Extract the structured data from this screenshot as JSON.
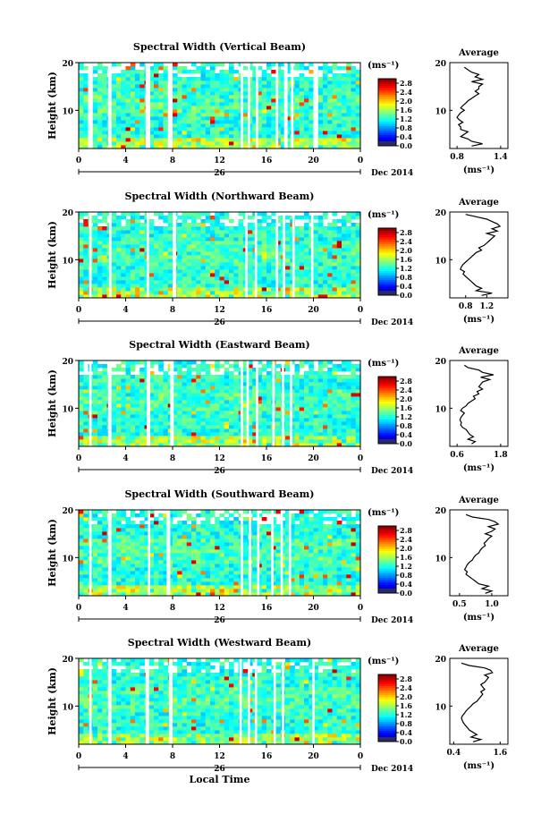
{
  "chart_data": [
    {
      "type": "heatmap",
      "title": "Spectral Width (Vertical Beam)",
      "ylabel": "Height (km)",
      "x_ticks": [
        "0",
        "4",
        "8",
        "12",
        "16",
        "20",
        "0"
      ],
      "y_ticks": [
        "20",
        "10"
      ],
      "ylim": [
        2,
        20
      ],
      "xlim": [
        0,
        24
      ],
      "date_day": "26",
      "date_label": "Dec 2014",
      "colorbar": {
        "unit": "(ms⁻¹)",
        "ticks": [
          "2.8",
          "2.4",
          "2.0",
          "1.6",
          "1.2",
          "0.8",
          "0.4",
          "0.0"
        ],
        "range": [
          0,
          3
        ]
      },
      "gaps_hours": [
        [
          0.8,
          1.2
        ],
        [
          2.5,
          2.8
        ],
        [
          5.7,
          6.1
        ],
        [
          7.6,
          8.0
        ],
        [
          13.8,
          14.0
        ],
        [
          14.4,
          14.6
        ],
        [
          15.1,
          15.3
        ],
        [
          16.8,
          17.0
        ],
        [
          17.5,
          17.8
        ],
        [
          18.1,
          18.3
        ],
        [
          20.0,
          20.4
        ]
      ],
      "average": {
        "title": "Average",
        "xlabel": "(ms⁻¹)",
        "x_ticks": [
          "0.8",
          "1.4"
        ],
        "xlim": [
          0.7,
          1.5
        ],
        "y_ticks": [
          "20",
          "10"
        ],
        "profile": [
          [
            2.5,
            1.0
          ],
          [
            3,
            1.15
          ],
          [
            3.5,
            1.0
          ],
          [
            4,
            0.95
          ],
          [
            4.5,
            0.85
          ],
          [
            5,
            0.9
          ],
          [
            5.5,
            0.95
          ],
          [
            6,
            0.85
          ],
          [
            6.5,
            0.85
          ],
          [
            7,
            0.82
          ],
          [
            7.5,
            0.88
          ],
          [
            8,
            0.83
          ],
          [
            8.5,
            0.8
          ],
          [
            9,
            0.82
          ],
          [
            9.5,
            0.85
          ],
          [
            10,
            0.9
          ],
          [
            10.5,
            0.85
          ],
          [
            11,
            0.88
          ],
          [
            11.5,
            0.92
          ],
          [
            12,
            0.95
          ],
          [
            12.5,
            1.0
          ],
          [
            13,
            1.05
          ],
          [
            13.5,
            1.1
          ],
          [
            14,
            1.05
          ],
          [
            14.5,
            1.1
          ],
          [
            15,
            1.1
          ],
          [
            15.5,
            1.15
          ],
          [
            16,
            1.0
          ],
          [
            16.5,
            1.15
          ],
          [
            17,
            1.05
          ],
          [
            17.5,
            1.1
          ],
          [
            18,
            1.0
          ],
          [
            18.5,
            0.95
          ],
          [
            19,
            0.9
          ]
        ]
      }
    },
    {
      "type": "heatmap",
      "title": "Spectral Width (Northward Beam)",
      "ylabel": "Height (km)",
      "x_ticks": [
        "0",
        "4",
        "8",
        "12",
        "16",
        "20",
        "0"
      ],
      "y_ticks": [
        "20",
        "10"
      ],
      "ylim": [
        2,
        20
      ],
      "xlim": [
        0,
        24
      ],
      "date_day": "26",
      "date_label": "Dec 2014",
      "colorbar": {
        "unit": "(ms⁻¹)",
        "ticks": [
          "2.8",
          "2.4",
          "2.0",
          "1.6",
          "1.2",
          "0.8",
          "0.4",
          "0.0"
        ],
        "range": [
          0,
          3
        ]
      },
      "gaps_hours": [
        [
          0.9,
          1.1
        ],
        [
          2.6,
          2.8
        ],
        [
          5.8,
          6.0
        ],
        [
          8.0,
          8.3
        ],
        [
          14.2,
          14.4
        ],
        [
          15.0,
          15.2
        ],
        [
          16.8,
          17.0
        ],
        [
          17.4,
          17.6
        ],
        [
          18.2,
          18.4
        ],
        [
          19.8,
          20.0
        ]
      ],
      "average": {
        "title": "Average",
        "xlabel": "(ms⁻¹)",
        "x_ticks": [
          "0.8",
          "1.2"
        ],
        "xlim": [
          0.5,
          1.6
        ],
        "y_ticks": [
          "20",
          "10"
        ],
        "profile": [
          [
            2.5,
            1.1
          ],
          [
            3,
            1.3
          ],
          [
            3.5,
            1.0
          ],
          [
            4,
            1.1
          ],
          [
            4.5,
            1.0
          ],
          [
            5,
            0.95
          ],
          [
            5.5,
            0.9
          ],
          [
            6,
            0.85
          ],
          [
            6.5,
            0.8
          ],
          [
            7,
            0.75
          ],
          [
            7.5,
            0.78
          ],
          [
            8,
            0.7
          ],
          [
            8.5,
            0.72
          ],
          [
            9,
            0.75
          ],
          [
            9.5,
            0.8
          ],
          [
            10,
            0.85
          ],
          [
            10.5,
            0.9
          ],
          [
            11,
            0.95
          ],
          [
            11.5,
            1.0
          ],
          [
            12,
            1.1
          ],
          [
            12.5,
            1.05
          ],
          [
            13,
            1.15
          ],
          [
            13.5,
            1.2
          ],
          [
            14,
            1.25
          ],
          [
            14.5,
            1.3
          ],
          [
            15,
            1.35
          ],
          [
            15.5,
            1.2
          ],
          [
            16,
            1.4
          ],
          [
            16.5,
            1.3
          ],
          [
            17,
            1.45
          ],
          [
            17.5,
            1.4
          ],
          [
            18,
            1.3
          ],
          [
            18.5,
            1.2
          ],
          [
            19,
            1.0
          ],
          [
            19.5,
            0.8
          ]
        ]
      }
    },
    {
      "type": "heatmap",
      "title": "Spectral Width (Eastward Beam)",
      "ylabel": "Height (km)",
      "x_ticks": [
        "0",
        "4",
        "8",
        "12",
        "16",
        "20",
        "0"
      ],
      "y_ticks": [
        "20",
        "10"
      ],
      "ylim": [
        2,
        20
      ],
      "xlim": [
        0,
        24
      ],
      "date_day": "26",
      "date_label": "Dec 2014",
      "colorbar": {
        "unit": "(ms⁻¹)",
        "ticks": [
          "2.8",
          "2.4",
          "2.0",
          "1.6",
          "1.2",
          "0.8",
          "0.4",
          "0.0"
        ],
        "range": [
          0,
          3
        ]
      },
      "gaps_hours": [
        [
          0.9,
          1.1
        ],
        [
          2.5,
          2.8
        ],
        [
          5.8,
          6.1
        ],
        [
          7.8,
          8.1
        ],
        [
          13.8,
          14.0
        ],
        [
          14.3,
          14.5
        ],
        [
          15.1,
          15.3
        ],
        [
          16.5,
          16.7
        ],
        [
          17.3,
          17.5
        ],
        [
          18.0,
          18.2
        ]
      ],
      "average": {
        "title": "Average",
        "xlabel": "(ms⁻¹)",
        "x_ticks": [
          "0.6",
          "1.8"
        ],
        "xlim": [
          0.4,
          2.0
        ],
        "y_ticks": [
          "20",
          "10"
        ],
        "profile": [
          [
            2.5,
            1.0
          ],
          [
            3,
            1.1
          ],
          [
            3.5,
            0.9
          ],
          [
            4,
            1.05
          ],
          [
            4.5,
            0.95
          ],
          [
            5,
            0.9
          ],
          [
            5.5,
            0.85
          ],
          [
            6,
            0.75
          ],
          [
            6.5,
            0.7
          ],
          [
            7,
            0.72
          ],
          [
            7.5,
            0.68
          ],
          [
            8,
            0.7
          ],
          [
            8.5,
            0.75
          ],
          [
            9,
            0.8
          ],
          [
            9.5,
            0.7
          ],
          [
            10,
            0.75
          ],
          [
            10.5,
            0.85
          ],
          [
            11,
            0.9
          ],
          [
            11.5,
            1.0
          ],
          [
            12,
            1.1
          ],
          [
            12.5,
            1.05
          ],
          [
            13,
            1.2
          ],
          [
            13.5,
            1.15
          ],
          [
            14,
            1.3
          ],
          [
            14.5,
            1.2
          ],
          [
            15,
            1.25
          ],
          [
            15.5,
            1.3
          ],
          [
            16,
            1.5
          ],
          [
            16.5,
            1.25
          ],
          [
            17,
            1.6
          ],
          [
            17.5,
            1.3
          ],
          [
            18,
            1.2
          ],
          [
            18.5,
            0.9
          ],
          [
            19,
            0.8
          ]
        ]
      }
    },
    {
      "type": "heatmap",
      "title": "Spectral Width (Southward Beam)",
      "ylabel": "Height (km)",
      "x_ticks": [
        "0",
        "4",
        "8",
        "12",
        "16",
        "20",
        "0"
      ],
      "y_ticks": [
        "20",
        "10"
      ],
      "ylim": [
        2,
        20
      ],
      "xlim": [
        0,
        24
      ],
      "date_day": "26",
      "date_label": "Dec 2014",
      "colorbar": {
        "unit": "(ms⁻¹)",
        "ticks": [
          "2.8",
          "2.4",
          "2.0",
          "1.6",
          "1.2",
          "0.8",
          "0.4",
          "0.0"
        ],
        "range": [
          0,
          3
        ]
      },
      "gaps_hours": [
        [
          0.9,
          1.1
        ],
        [
          2.5,
          2.8
        ],
        [
          5.9,
          6.1
        ],
        [
          7.5,
          7.8
        ],
        [
          13.8,
          14.0
        ],
        [
          14.5,
          14.7
        ],
        [
          15.2,
          15.4
        ],
        [
          16.4,
          16.6
        ],
        [
          17.2,
          17.4
        ],
        [
          17.9,
          18.1
        ]
      ],
      "average": {
        "title": "Average",
        "xlabel": "(ms⁻¹)",
        "x_ticks": [
          "0.5",
          "1.0"
        ],
        "xlim": [
          0.35,
          1.25
        ],
        "y_ticks": [
          "20",
          "10"
        ],
        "profile": [
          [
            2.5,
            0.9
          ],
          [
            3,
            1.0
          ],
          [
            3.5,
            0.85
          ],
          [
            4,
            0.95
          ],
          [
            4.5,
            0.8
          ],
          [
            5,
            0.75
          ],
          [
            5.5,
            0.7
          ],
          [
            6,
            0.65
          ],
          [
            6.5,
            0.6
          ],
          [
            7,
            0.62
          ],
          [
            7.5,
            0.58
          ],
          [
            8,
            0.6
          ],
          [
            8.5,
            0.62
          ],
          [
            9,
            0.65
          ],
          [
            9.5,
            0.7
          ],
          [
            10,
            0.72
          ],
          [
            10.5,
            0.75
          ],
          [
            11,
            0.8
          ],
          [
            11.5,
            0.82
          ],
          [
            12,
            0.85
          ],
          [
            12.5,
            0.9
          ],
          [
            13,
            0.88
          ],
          [
            13.5,
            0.92
          ],
          [
            14,
            0.95
          ],
          [
            14.5,
            1.0
          ],
          [
            15,
            0.9
          ],
          [
            15.5,
            1.0
          ],
          [
            16,
            1.05
          ],
          [
            16.5,
            0.95
          ],
          [
            17,
            1.1
          ],
          [
            17.5,
            1.05
          ],
          [
            18,
            0.95
          ],
          [
            18.5,
            0.7
          ],
          [
            19,
            0.6
          ]
        ]
      }
    },
    {
      "type": "heatmap",
      "title": "Spectral Width (Westward Beam)",
      "ylabel": "Height (km)",
      "xlabel": "Local Time",
      "x_ticks": [
        "0",
        "4",
        "8",
        "12",
        "16",
        "20",
        "0"
      ],
      "y_ticks": [
        "20",
        "10"
      ],
      "ylim": [
        2,
        20
      ],
      "xlim": [
        0,
        24
      ],
      "date_day": "26",
      "date_label": "Dec 2014",
      "colorbar": {
        "unit": "(ms⁻¹)",
        "ticks": [
          "2.8",
          "2.4",
          "2.0",
          "1.6",
          "1.2",
          "0.8",
          "0.4",
          "0.0"
        ],
        "range": [
          0,
          3
        ]
      },
      "gaps_hours": [
        [
          0.9,
          1.1
        ],
        [
          2.5,
          2.8
        ],
        [
          5.7,
          6.0
        ],
        [
          7.7,
          8.0
        ],
        [
          13.7,
          13.9
        ],
        [
          14.4,
          14.6
        ],
        [
          15.0,
          15.2
        ],
        [
          16.6,
          16.8
        ],
        [
          17.3,
          17.5
        ],
        [
          19.9,
          20.1
        ]
      ],
      "average": {
        "title": "Average",
        "xlabel": "(ms⁻¹)",
        "x_ticks": [
          "0.4",
          "1.6"
        ],
        "xlim": [
          0.3,
          1.8
        ],
        "y_ticks": [
          "20",
          "10"
        ],
        "profile": [
          [
            2.5,
            0.9
          ],
          [
            3,
            1.1
          ],
          [
            3.5,
            0.85
          ],
          [
            4,
            1.0
          ],
          [
            4.5,
            0.9
          ],
          [
            5,
            0.8
          ],
          [
            5.5,
            0.75
          ],
          [
            6,
            0.7
          ],
          [
            6.5,
            0.65
          ],
          [
            7,
            0.62
          ],
          [
            7.5,
            0.6
          ],
          [
            8,
            0.63
          ],
          [
            8.5,
            0.68
          ],
          [
            9,
            0.72
          ],
          [
            9.5,
            0.78
          ],
          [
            10,
            0.85
          ],
          [
            10.5,
            0.9
          ],
          [
            11,
            1.0
          ],
          [
            11.5,
            1.05
          ],
          [
            12,
            1.1
          ],
          [
            12.5,
            1.15
          ],
          [
            13,
            1.1
          ],
          [
            13.5,
            1.2
          ],
          [
            14,
            1.15
          ],
          [
            14.5,
            1.1
          ],
          [
            15,
            1.2
          ],
          [
            15.5,
            1.25
          ],
          [
            16,
            1.3
          ],
          [
            16.5,
            1.2
          ],
          [
            17,
            1.4
          ],
          [
            17.5,
            1.35
          ],
          [
            18,
            1.2
          ],
          [
            18.5,
            0.8
          ],
          [
            19,
            0.6
          ]
        ]
      }
    }
  ]
}
